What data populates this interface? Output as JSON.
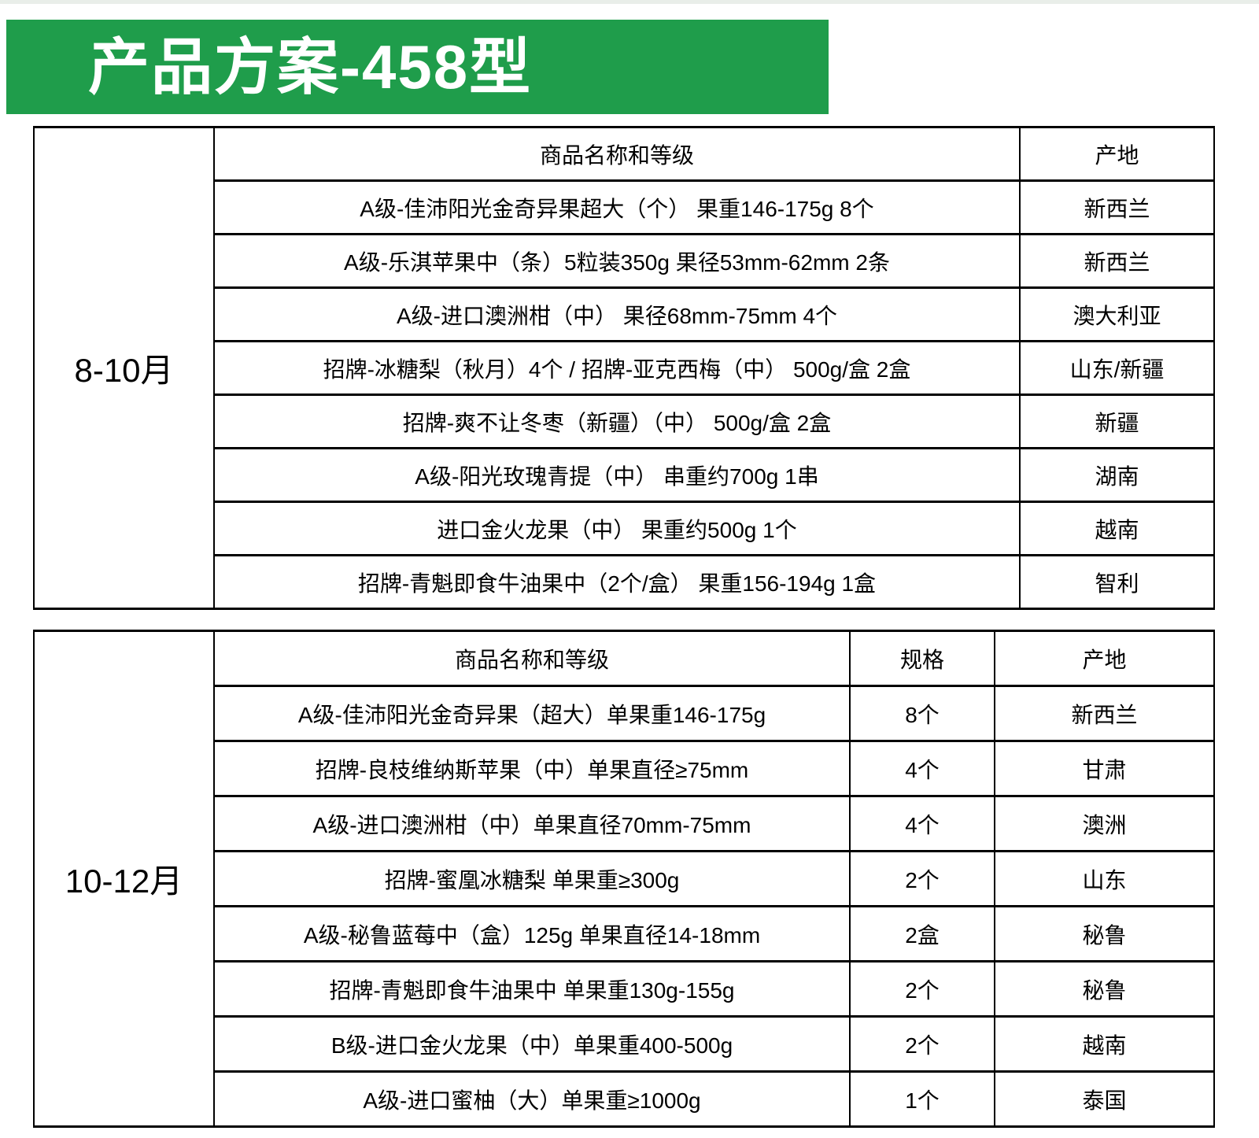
{
  "page": {
    "title": "产品方案-458型"
  },
  "colors": {
    "banner_green": "#1f9d4b",
    "table_border": "#000000",
    "top_strip": "#e9eee9",
    "title_text": "#ffffff",
    "body_text": "#000000"
  },
  "table1": {
    "period": "8-10月",
    "headers": {
      "name": "商品名称和等级",
      "origin": "产地"
    },
    "rows": [
      {
        "name": "A级-佳沛阳光金奇异果超大（个） 果重146-175g 8个",
        "origin": "新西兰"
      },
      {
        "name": "A级-乐淇苹果中（条）5粒装350g 果径53mm-62mm 2条",
        "origin": "新西兰"
      },
      {
        "name": "A级-进口澳洲柑（中） 果径68mm-75mm 4个",
        "origin": "澳大利亚"
      },
      {
        "name": "招牌-冰糖梨（秋月）4个 / 招牌-亚克西梅（中） 500g/盒 2盒",
        "origin": "山东/新疆"
      },
      {
        "name": "招牌-爽不让冬枣（新疆）（中） 500g/盒 2盒",
        "origin": "新疆"
      },
      {
        "name": "A级-阳光玫瑰青提（中） 串重约700g 1串",
        "origin": "湖南"
      },
      {
        "name": "进口金火龙果（中） 果重约500g 1个",
        "origin": "越南"
      },
      {
        "name": "招牌-青魁即食牛油果中（2个/盒） 果重156-194g 1盒",
        "origin": "智利"
      }
    ]
  },
  "table2": {
    "period": "10-12月",
    "headers": {
      "name": "商品名称和等级",
      "spec": "规格",
      "origin": "产地"
    },
    "rows": [
      {
        "name": "A级-佳沛阳光金奇异果（超大）单果重146-175g",
        "spec": "8个",
        "origin": "新西兰"
      },
      {
        "name": "招牌-良枝维纳斯苹果（中）单果直径≥75mm",
        "spec": "4个",
        "origin": "甘肃"
      },
      {
        "name": "A级-进口澳洲柑（中）单果直径70mm-75mm",
        "spec": "4个",
        "origin": "澳洲"
      },
      {
        "name": "招牌-蜜凰冰糖梨 单果重≥300g",
        "spec": "2个",
        "origin": "山东"
      },
      {
        "name": "A级-秘鲁蓝莓中（盒）125g 单果直径14-18mm",
        "spec": "2盒",
        "origin": "秘鲁"
      },
      {
        "name": "招牌-青魁即食牛油果中 单果重130g-155g",
        "spec": "2个",
        "origin": "秘鲁"
      },
      {
        "name": "B级-进口金火龙果（中）单果重400-500g",
        "spec": "2个",
        "origin": "越南"
      },
      {
        "name": "A级-进口蜜柚（大）单果重≥1000g",
        "spec": "1个",
        "origin": "泰国"
      }
    ]
  }
}
